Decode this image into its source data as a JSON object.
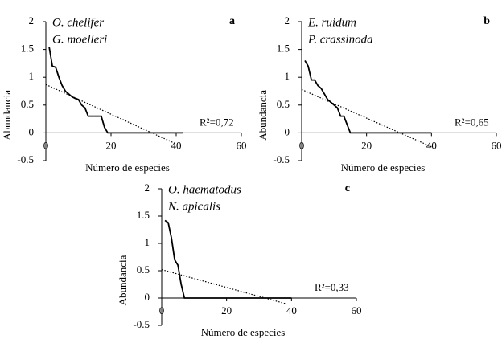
{
  "chart_data": [
    {
      "type": "line",
      "panel_label": "a",
      "species": [
        "O. chelifer",
        "G. moelleri"
      ],
      "r2_label": "R²=0,72",
      "x_label": "Número de especies",
      "y_label": "Abundancia",
      "xlim": [
        0,
        60
      ],
      "ylim": [
        -0.5,
        2
      ],
      "xticks": [
        0,
        20,
        40,
        60
      ],
      "yticks": [
        -0.5,
        0,
        0.5,
        1,
        1.5,
        2
      ],
      "series": [
        {
          "style": "solid",
          "color": "#000000",
          "x": [
            1,
            2,
            3,
            4,
            5,
            6,
            7,
            8,
            9,
            10,
            11,
            12,
            13,
            17,
            18,
            19,
            42
          ],
          "values": [
            1.55,
            1.2,
            1.18,
            1.0,
            0.85,
            0.75,
            0.7,
            0.65,
            0.62,
            0.6,
            0.5,
            0.45,
            0.3,
            0.3,
            0.1,
            0,
            0
          ]
        },
        {
          "style": "dotted",
          "color": "#000000",
          "x": [
            0,
            40
          ],
          "values": [
            0.87,
            -0.2
          ]
        }
      ]
    },
    {
      "type": "line",
      "panel_label": "b",
      "species": [
        "E. ruidum",
        "P. crassinoda"
      ],
      "r2_label": "R²=0,65",
      "x_label": "Número de especies",
      "y_label": "Abundancia",
      "xlim": [
        0,
        60
      ],
      "ylim": [
        -0.5,
        2
      ],
      "xticks": [
        0,
        20,
        40,
        60
      ],
      "yticks": [
        -0.5,
        0,
        0.5,
        1,
        1.5,
        2
      ],
      "series": [
        {
          "style": "solid",
          "color": "#000000",
          "x": [
            1,
            2,
            3,
            4,
            5,
            6,
            7,
            8,
            9,
            10,
            11,
            12,
            13,
            14,
            15,
            40
          ],
          "values": [
            1.3,
            1.2,
            0.95,
            0.95,
            0.85,
            0.8,
            0.7,
            0.6,
            0.55,
            0.5,
            0.45,
            0.3,
            0.3,
            0.15,
            0,
            0
          ]
        },
        {
          "style": "dotted",
          "color": "#000000",
          "x": [
            0,
            40
          ],
          "values": [
            0.78,
            -0.25
          ]
        }
      ]
    },
    {
      "type": "line",
      "panel_label": "c",
      "species": [
        "O. haematodus",
        "N. apicalis"
      ],
      "r2_label": "R²=0,33",
      "x_label": "Número de especies",
      "y_label": "Abundancia",
      "xlim": [
        0,
        60
      ],
      "ylim": [
        -0.5,
        2
      ],
      "xticks": [
        0,
        20,
        40,
        60
      ],
      "yticks": [
        -0.5,
        0,
        0.5,
        1,
        1.5,
        2
      ],
      "series": [
        {
          "style": "solid",
          "color": "#000000",
          "x": [
            1,
            2,
            3,
            4,
            5,
            6,
            7,
            40
          ],
          "values": [
            1.42,
            1.38,
            1.1,
            0.7,
            0.6,
            0.25,
            0,
            0
          ]
        },
        {
          "style": "dotted",
          "color": "#000000",
          "x": [
            0,
            38
          ],
          "values": [
            0.52,
            -0.1
          ]
        }
      ]
    }
  ]
}
